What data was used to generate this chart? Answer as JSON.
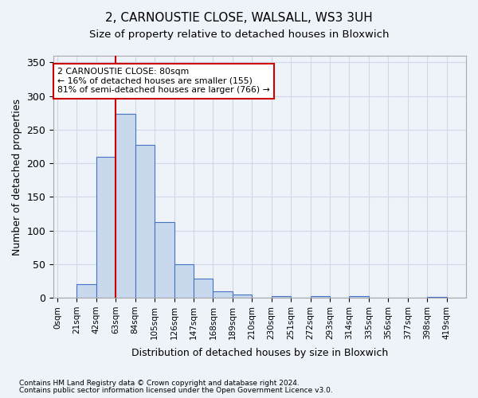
{
  "title_line1": "2, CARNOUSTIE CLOSE, WALSALL, WS3 3UH",
  "title_line2": "Size of property relative to detached houses in Bloxwich",
  "xlabel": "Distribution of detached houses by size in Bloxwich",
  "ylabel": "Number of detached properties",
  "footnote1": "Contains HM Land Registry data © Crown copyright and database right 2024.",
  "footnote2": "Contains public sector information licensed under the Open Government Licence v3.0.",
  "bin_labels": [
    "0sqm",
    "21sqm",
    "42sqm",
    "63sqm",
    "84sqm",
    "105sqm",
    "126sqm",
    "147sqm",
    "168sqm",
    "189sqm",
    "210sqm",
    "230sqm",
    "251sqm",
    "272sqm",
    "293sqm",
    "314sqm",
    "335sqm",
    "356sqm",
    "377sqm",
    "398sqm",
    "419sqm"
  ],
  "bar_values": [
    0,
    20,
    210,
    273,
    227,
    113,
    50,
    29,
    9,
    5,
    0,
    3,
    0,
    3,
    0,
    3,
    0,
    0,
    0,
    1,
    0
  ],
  "bar_color": "#c9d9ed",
  "bar_edge_color": "#4472c4",
  "grid_color": "#d0d8e8",
  "background_color": "#eef2f9",
  "marker_bin_index": 3,
  "annotation_line1": "2 CARNOUSTIE CLOSE: 80sqm",
  "annotation_line2": "← 16% of detached houses are smaller (155)",
  "annotation_line3": "81% of semi-detached houses are larger (766) →",
  "annotation_box_color": "#ffffff",
  "annotation_border_color": "#cc0000",
  "ylim": [
    0,
    360
  ],
  "yticks": [
    0,
    50,
    100,
    150,
    200,
    250,
    300,
    350
  ]
}
